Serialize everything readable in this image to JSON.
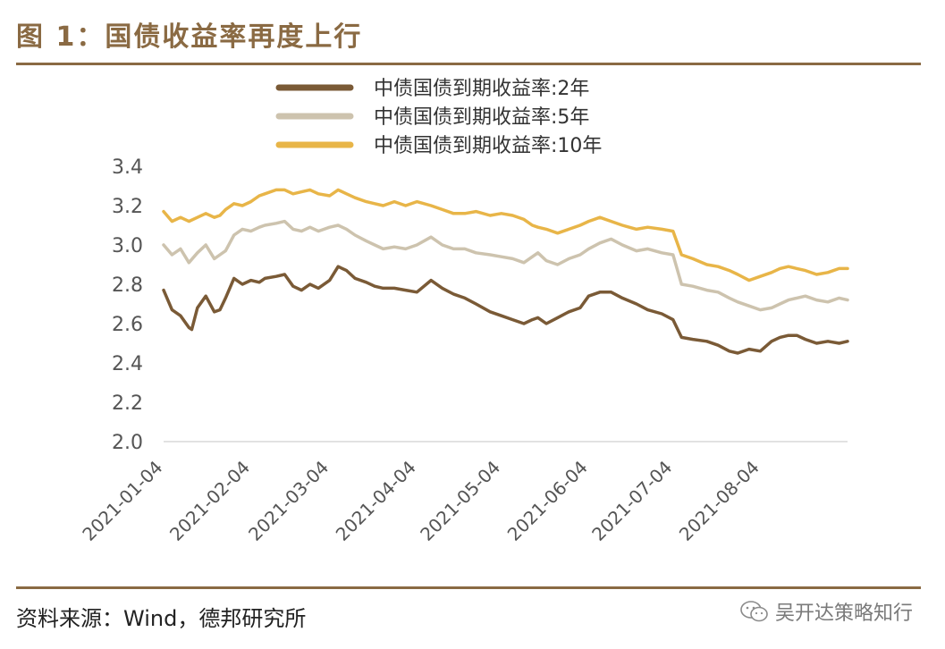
{
  "figure": {
    "title": "图 1：国债收益率再度上行",
    "source": "资料来源：Wind，德邦研究所",
    "watermark": "吴开达策略知行"
  },
  "chart_data": {
    "type": "line",
    "title": "图 1：国债收益率再度上行",
    "xlabel": "",
    "ylabel": "",
    "ylim": [
      2.0,
      3.4
    ],
    "yticks": [
      2.0,
      2.2,
      2.4,
      2.6,
      2.8,
      3.0,
      3.2,
      3.4
    ],
    "ytick_labels": [
      "2.0",
      "2.2",
      "2.4",
      "2.6",
      "2.8",
      "3.0",
      "3.2",
      "3.4"
    ],
    "xticks": [
      "2021-01-04",
      "2021-02-04",
      "2021-03-04",
      "2021-04-04",
      "2021-05-04",
      "2021-06-04",
      "2021-07-04",
      "2021-08-04"
    ],
    "xtick_days": [
      0,
      31,
      59,
      90,
      120,
      151,
      181,
      212
    ],
    "x_range_days": [
      0,
      243
    ],
    "grid": false,
    "legend_position": "top-center",
    "series": [
      {
        "name": "中债国债到期收益率:2年",
        "color": "#7a5a36",
        "days": [
          0,
          3,
          6,
          9,
          10,
          12,
          15,
          18,
          20,
          22,
          25,
          28,
          31,
          34,
          36,
          40,
          43,
          46,
          49,
          52,
          55,
          59,
          62,
          65,
          68,
          72,
          75,
          78,
          82,
          86,
          90,
          95,
          99,
          103,
          107,
          111,
          116,
          120,
          124,
          128,
          131,
          133,
          136,
          140,
          144,
          148,
          151,
          155,
          159,
          163,
          168,
          172,
          177,
          181,
          184,
          188,
          193,
          197,
          201,
          204,
          208,
          212,
          216,
          219,
          222,
          225,
          228,
          232,
          236,
          240,
          243
        ],
        "values": [
          2.77,
          2.67,
          2.64,
          2.58,
          2.57,
          2.68,
          2.74,
          2.66,
          2.67,
          2.73,
          2.83,
          2.8,
          2.82,
          2.81,
          2.83,
          2.84,
          2.85,
          2.79,
          2.77,
          2.8,
          2.78,
          2.82,
          2.89,
          2.87,
          2.83,
          2.81,
          2.79,
          2.78,
          2.78,
          2.77,
          2.76,
          2.82,
          2.78,
          2.75,
          2.73,
          2.7,
          2.66,
          2.64,
          2.62,
          2.6,
          2.62,
          2.63,
          2.6,
          2.63,
          2.66,
          2.68,
          2.74,
          2.76,
          2.76,
          2.73,
          2.7,
          2.67,
          2.65,
          2.62,
          2.53,
          2.52,
          2.51,
          2.49,
          2.46,
          2.45,
          2.47,
          2.46,
          2.51,
          2.53,
          2.54,
          2.54,
          2.52,
          2.5,
          2.51,
          2.5,
          2.51
        ]
      },
      {
        "name": "中债国债到期收益率:5年",
        "color": "#cdc3ae",
        "days": [
          0,
          3,
          6,
          9,
          12,
          15,
          18,
          20,
          22,
          25,
          28,
          31,
          34,
          36,
          40,
          43,
          46,
          49,
          52,
          55,
          59,
          62,
          65,
          68,
          72,
          75,
          78,
          82,
          86,
          90,
          95,
          99,
          103,
          107,
          111,
          116,
          120,
          124,
          128,
          131,
          133,
          136,
          140,
          144,
          148,
          151,
          155,
          159,
          163,
          168,
          172,
          177,
          181,
          184,
          188,
          193,
          197,
          201,
          204,
          208,
          212,
          216,
          219,
          222,
          225,
          228,
          232,
          236,
          240,
          243
        ],
        "values": [
          3.0,
          2.95,
          2.98,
          2.91,
          2.96,
          3.0,
          2.93,
          2.95,
          2.97,
          3.05,
          3.08,
          3.07,
          3.09,
          3.1,
          3.11,
          3.12,
          3.08,
          3.07,
          3.09,
          3.07,
          3.09,
          3.1,
          3.08,
          3.05,
          3.02,
          3.0,
          2.98,
          2.99,
          2.98,
          3.0,
          3.04,
          3.0,
          2.98,
          2.98,
          2.96,
          2.95,
          2.94,
          2.93,
          2.91,
          2.94,
          2.96,
          2.92,
          2.9,
          2.93,
          2.95,
          2.98,
          3.01,
          3.03,
          3.0,
          2.97,
          2.98,
          2.96,
          2.95,
          2.8,
          2.79,
          2.77,
          2.76,
          2.73,
          2.71,
          2.69,
          2.67,
          2.68,
          2.7,
          2.72,
          2.73,
          2.74,
          2.72,
          2.71,
          2.73,
          2.72
        ]
      },
      {
        "name": "中债国债到期收益率:10年",
        "color": "#e8b548",
        "days": [
          0,
          3,
          6,
          9,
          12,
          15,
          18,
          20,
          22,
          25,
          28,
          31,
          34,
          36,
          40,
          43,
          46,
          49,
          52,
          55,
          59,
          62,
          65,
          68,
          72,
          75,
          78,
          82,
          86,
          90,
          95,
          99,
          103,
          107,
          111,
          116,
          120,
          124,
          128,
          131,
          133,
          136,
          140,
          144,
          148,
          151,
          155,
          159,
          163,
          168,
          172,
          177,
          181,
          184,
          188,
          193,
          197,
          201,
          204,
          208,
          212,
          216,
          219,
          222,
          225,
          228,
          232,
          236,
          240,
          243
        ],
        "values": [
          3.17,
          3.12,
          3.14,
          3.12,
          3.14,
          3.16,
          3.14,
          3.15,
          3.18,
          3.21,
          3.2,
          3.22,
          3.25,
          3.26,
          3.28,
          3.28,
          3.26,
          3.27,
          3.28,
          3.26,
          3.25,
          3.28,
          3.26,
          3.24,
          3.22,
          3.21,
          3.2,
          3.22,
          3.2,
          3.22,
          3.2,
          3.18,
          3.16,
          3.16,
          3.17,
          3.15,
          3.16,
          3.15,
          3.13,
          3.1,
          3.09,
          3.08,
          3.06,
          3.08,
          3.1,
          3.12,
          3.14,
          3.12,
          3.1,
          3.08,
          3.09,
          3.08,
          3.07,
          2.95,
          2.93,
          2.9,
          2.89,
          2.87,
          2.85,
          2.82,
          2.84,
          2.86,
          2.88,
          2.89,
          2.88,
          2.87,
          2.85,
          2.86,
          2.88,
          2.88
        ]
      }
    ]
  }
}
